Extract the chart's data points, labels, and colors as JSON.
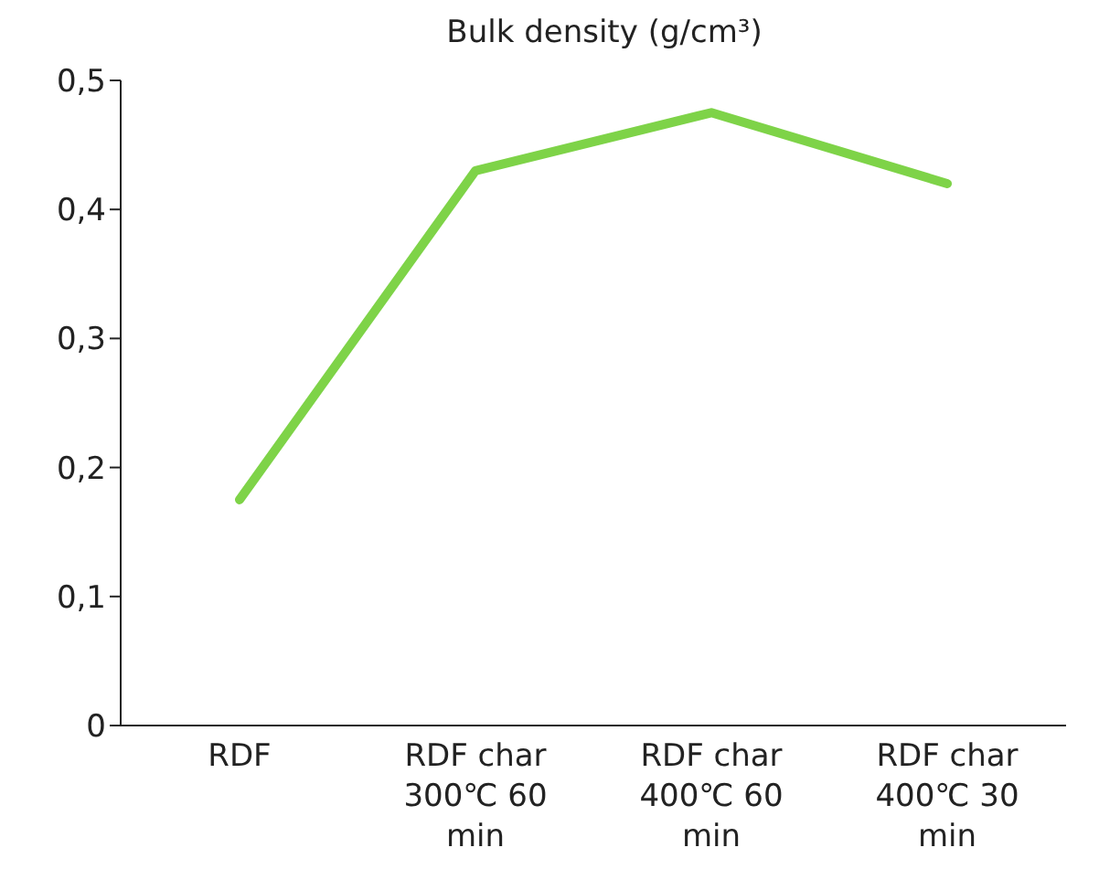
{
  "chart_data": {
    "type": "line",
    "title": "Bulk density (g/cm³)",
    "categories": [
      "RDF",
      "RDF char 300℃ 60 min",
      "RDF char 400℃ 60 min",
      "RDF char 400℃ 30 min"
    ],
    "series": [
      {
        "color": "#7ed348",
        "values": [
          0.175,
          0.43,
          0.475,
          0.42
        ]
      }
    ],
    "ylim": [
      0,
      0.5
    ],
    "yticks": [
      0,
      {
        "value": 0.1,
        "label": "0,1"
      },
      {
        "value": 0.2,
        "label": "0,2"
      },
      {
        "value": 0.3,
        "label": "0,3"
      },
      {
        "value": 0.4,
        "label": "0,4"
      },
      {
        "value": 0.5,
        "label": "0,5"
      }
    ],
    "grid": false,
    "marker": "none",
    "line_style": "solid"
  }
}
